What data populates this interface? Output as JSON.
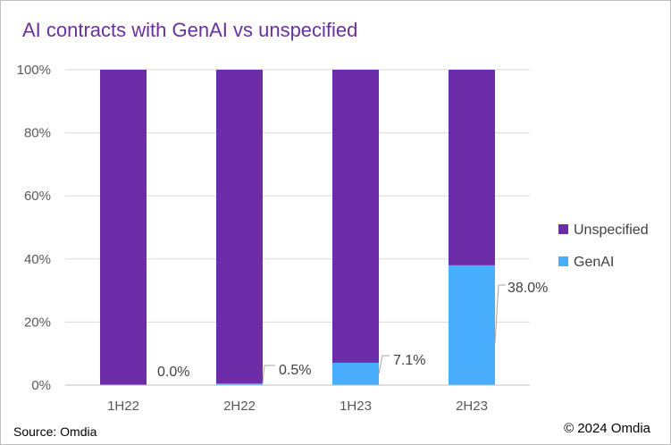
{
  "chart_data": {
    "type": "bar",
    "stacked": true,
    "percent_stacked": true,
    "title": "AI contracts with GenAI vs unspecified",
    "categories": [
      "1H22",
      "2H22",
      "1H23",
      "2H23"
    ],
    "series": [
      {
        "name": "GenAI",
        "values": [
          0.0,
          0.5,
          7.1,
          38.0
        ],
        "color": "#4aaeff"
      },
      {
        "name": "Unspecified",
        "values": [
          100.0,
          99.5,
          92.9,
          62.0
        ],
        "color": "#6d2ca8"
      }
    ],
    "data_labels": [
      "0.0%",
      "0.5%",
      "7.1%",
      "38.0%"
    ],
    "ylim": [
      0,
      100
    ],
    "yticks": [
      0,
      20,
      40,
      60,
      80,
      100
    ],
    "ytick_labels": [
      "0%",
      "20%",
      "40%",
      "60%",
      "80%",
      "100%"
    ],
    "grid": true,
    "legend": {
      "position": "right",
      "entries": [
        "Unspecified",
        "GenAI"
      ]
    }
  },
  "footer": {
    "source": "Source: Omdia",
    "copyright": "© 2024 Omdia"
  }
}
